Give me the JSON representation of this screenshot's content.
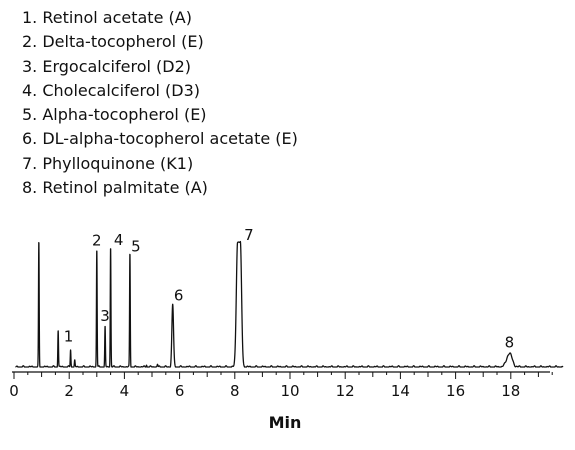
{
  "legend": [
    "1. Retinol acetate (A)",
    "2. Delta-tocopherol (E)",
    "3. Ergocalciferol (D2)",
    "4. Cholecalciferol (D3)",
    "5. Alpha-tocopherol (E)",
    "6. DL-alpha-tocopherol acetate (E)",
    "7. Phylloquinone (K1)",
    "8. Retinol palmitate (A)"
  ],
  "chart_data": {
    "type": "line",
    "title": "",
    "xlabel": "Min",
    "ylabel": "",
    "xlim": [
      0,
      20
    ],
    "ylim": [
      0,
      100
    ],
    "x_ticks": [
      0,
      2,
      4,
      6,
      8,
      10,
      12,
      14,
      16,
      18
    ],
    "grid": false,
    "peaks": [
      {
        "x": 0.9,
        "height": 100,
        "label": ""
      },
      {
        "x": 1.6,
        "height": 30,
        "label": ""
      },
      {
        "x": 2.05,
        "height": 14,
        "label": "1"
      },
      {
        "x": 2.2,
        "height": 5,
        "label": ""
      },
      {
        "x": 3.0,
        "height": 94,
        "label": "2"
      },
      {
        "x": 3.3,
        "height": 32,
        "label": "3"
      },
      {
        "x": 3.5,
        "height": 96,
        "label": "4"
      },
      {
        "x": 4.2,
        "height": 91,
        "label": "5"
      },
      {
        "x": 4.8,
        "height": 2,
        "label": ""
      },
      {
        "x": 5.2,
        "height": 2,
        "label": ""
      },
      {
        "x": 5.75,
        "height": 50,
        "label": "6"
      },
      {
        "x": 8.15,
        "height": 100,
        "label": "7"
      },
      {
        "x": 17.95,
        "height": 11,
        "label": "8"
      }
    ]
  }
}
